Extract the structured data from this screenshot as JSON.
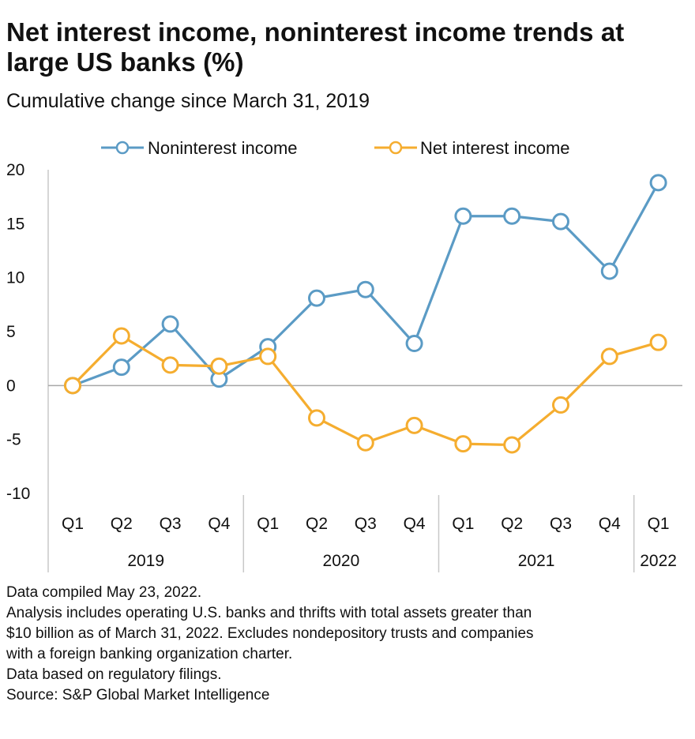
{
  "title": "Net interest income, noninterest income trends at large US banks (%)",
  "subtitle": "Cumulative change since March 31, 2019",
  "notes": [
    "Data compiled May 23, 2022.",
    "Analysis includes operating U.S. banks and thrifts with total assets greater than",
    "$10 billion as of March 31, 2022. Excludes nondepository trusts and companies",
    "with a foreign banking organization charter.",
    "Data based on regulatory filings.",
    "Source: S&P Global Market Intelligence"
  ],
  "chart_data": {
    "type": "line",
    "categories": [
      "Q1",
      "Q2",
      "Q3",
      "Q4",
      "Q1",
      "Q2",
      "Q3",
      "Q4",
      "Q1",
      "Q2",
      "Q3",
      "Q4",
      "Q1"
    ],
    "year_groups": [
      {
        "label": "2019",
        "start": 0,
        "count": 4
      },
      {
        "label": "2020",
        "start": 4,
        "count": 4
      },
      {
        "label": "2021",
        "start": 8,
        "count": 4
      },
      {
        "label": "2022",
        "start": 12,
        "count": 1
      }
    ],
    "series": [
      {
        "name": "Noninterest income",
        "color": "#5b9bc5",
        "values": [
          0,
          1.7,
          5.7,
          0.6,
          3.6,
          8.1,
          8.9,
          3.9,
          15.7,
          15.7,
          15.2,
          10.6,
          18.8
        ]
      },
      {
        "name": "Net interest income",
        "color": "#f5ad2f",
        "values": [
          0,
          4.6,
          1.9,
          1.8,
          2.7,
          -3.0,
          -5.3,
          -3.7,
          -5.4,
          -5.5,
          -1.8,
          2.7,
          4.0
        ]
      }
    ],
    "yticks": [
      20,
      15,
      10,
      5,
      0,
      -5,
      -10
    ],
    "ylim": [
      -10,
      20
    ],
    "legend_position": "top",
    "grid": false
  }
}
